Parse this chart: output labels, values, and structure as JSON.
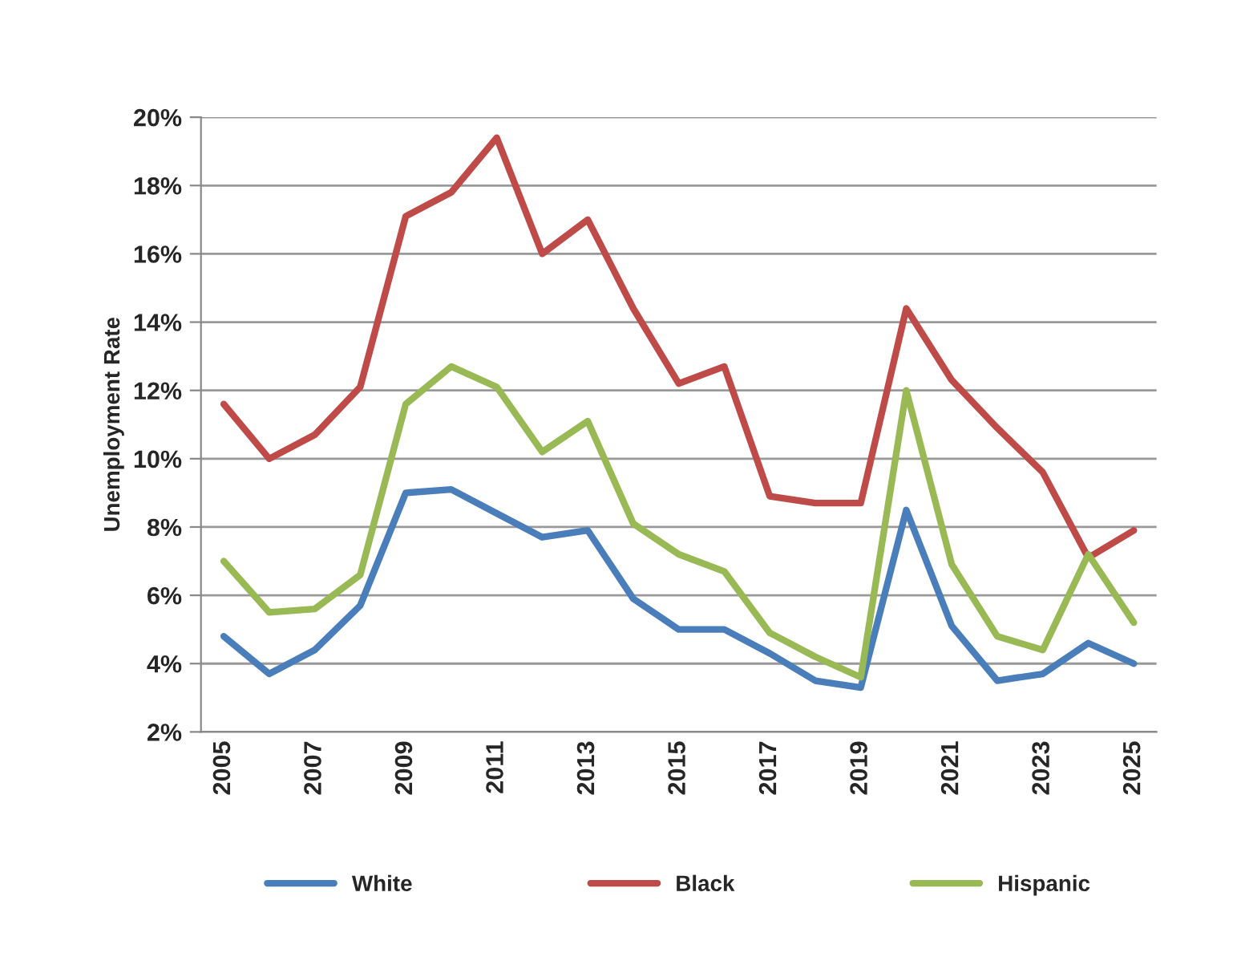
{
  "chart_data": {
    "type": "line",
    "ylabel": "Unemployment Rate",
    "categories": [
      "2005",
      null,
      "2007",
      null,
      "2009",
      null,
      "2011",
      null,
      "2013",
      null,
      "2015",
      null,
      "2017",
      null,
      "2019",
      null,
      "2021",
      null,
      "2023",
      null,
      "2025"
    ],
    "series": [
      {
        "name": "White",
        "color": "#4a7ebb",
        "values": [
          4.8,
          3.7,
          4.4,
          5.7,
          9.0,
          9.1,
          8.4,
          7.7,
          7.9,
          5.9,
          5.0,
          5.0,
          4.3,
          3.5,
          3.3,
          8.5,
          5.1,
          3.5,
          3.7,
          4.6,
          4.0
        ]
      },
      {
        "name": "Black",
        "color": "#be4b48",
        "values": [
          11.6,
          10.0,
          10.7,
          12.1,
          17.1,
          17.8,
          19.4,
          16.0,
          17.0,
          14.4,
          12.2,
          12.7,
          8.9,
          8.7,
          8.7,
          14.4,
          12.3,
          10.9,
          9.6,
          7.1,
          7.9
        ]
      },
      {
        "name": "Hispanic",
        "color": "#98b954",
        "values": [
          7.0,
          5.5,
          5.6,
          6.6,
          11.6,
          12.7,
          12.1,
          10.2,
          11.1,
          8.1,
          7.2,
          6.7,
          4.9,
          4.2,
          3.6,
          12.0,
          6.9,
          4.8,
          4.4,
          7.2,
          5.2
        ]
      }
    ],
    "ylim": [
      2,
      20
    ],
    "yticks": [
      {
        "value": 2,
        "label": "2%"
      },
      {
        "value": 4,
        "label": "4%"
      },
      {
        "value": 6,
        "label": "6%"
      },
      {
        "value": 8,
        "label": "8%"
      },
      {
        "value": 10,
        "label": "10%"
      },
      {
        "value": 12,
        "label": "12%"
      },
      {
        "value": 14,
        "label": "14%"
      },
      {
        "value": 16,
        "label": "16%"
      },
      {
        "value": 18,
        "label": "18%"
      },
      {
        "value": 20,
        "label": "20%"
      }
    ],
    "grid": "y",
    "legend": "bottom",
    "marker": "none",
    "line_style": "solid"
  }
}
